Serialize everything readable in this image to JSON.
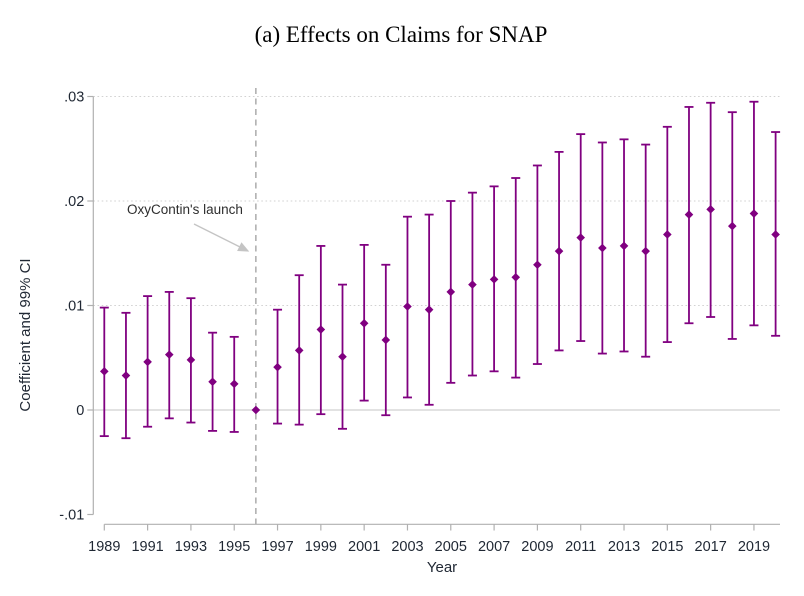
{
  "title": "(a) Effects on Claims for SNAP",
  "chart_data": {
    "type": "scatter",
    "subtype": "coefficient_plot_with_error_bars",
    "title": "(a) Effects on Claims for SNAP",
    "xlabel": "Year",
    "ylabel": "Coefficient and 99% CI",
    "x_tick_labels": [
      "1989",
      "1991",
      "1993",
      "1995",
      "1997",
      "1999",
      "2001",
      "2003",
      "2005",
      "2007",
      "2009",
      "2011",
      "2013",
      "2015",
      "2017",
      "2019"
    ],
    "x_tick_values": [
      1989,
      1991,
      1993,
      1995,
      1997,
      1999,
      2001,
      2003,
      2005,
      2007,
      2009,
      2011,
      2013,
      2015,
      2017,
      2019
    ],
    "y_tick_labels": [
      ".03",
      ".02",
      ".01",
      "0",
      "-.01"
    ],
    "y_tick_values": [
      0.03,
      0.02,
      0.01,
      0,
      -0.01
    ],
    "xlim": [
      1988.4,
      2020.6
    ],
    "ylim": [
      -0.012,
      0.031
    ],
    "grid": "horizontal-dotted",
    "zero_line": true,
    "reference_year": 1996,
    "vline": {
      "x": 1996,
      "style": "dashed"
    },
    "annotation": {
      "text": "OxyContin's launch",
      "points_to_x": 1996
    },
    "series": [
      {
        "name": "Coefficient and 99% CI",
        "marker": "diamond",
        "x": [
          1989,
          1990,
          1991,
          1992,
          1993,
          1994,
          1995,
          1996,
          1997,
          1998,
          1999,
          2000,
          2001,
          2002,
          2003,
          2004,
          2005,
          2006,
          2007,
          2008,
          2009,
          2010,
          2011,
          2012,
          2013,
          2014,
          2015,
          2016,
          2017,
          2018,
          2019,
          2020
        ],
        "y": [
          0.0037,
          0.0033,
          0.0046,
          0.0053,
          0.0048,
          0.0027,
          0.0025,
          0,
          0.0041,
          0.0057,
          0.0077,
          0.0051,
          0.0083,
          0.0067,
          0.0099,
          0.0096,
          0.0113,
          0.012,
          0.0125,
          0.0127,
          0.0139,
          0.0152,
          0.0165,
          0.0155,
          0.0157,
          0.0152,
          0.0168,
          0.0187,
          0.0192,
          0.0176,
          0.0188,
          0.0168
        ],
        "ci_low": [
          -0.0025,
          -0.0027,
          -0.0016,
          -0.0008,
          -0.0012,
          -0.002,
          -0.0021,
          null,
          -0.0013,
          -0.0014,
          -0.0004,
          -0.0018,
          0.0009,
          -0.0005,
          0.0012,
          0.0005,
          0.0026,
          0.0033,
          0.0037,
          0.0031,
          0.0044,
          0.0057,
          0.0066,
          0.0054,
          0.0056,
          0.0051,
          0.0065,
          0.0083,
          0.0089,
          0.0068,
          0.0081,
          0.0071
        ],
        "ci_high": [
          0.0098,
          0.0093,
          0.0109,
          0.0113,
          0.0107,
          0.0074,
          0.007,
          null,
          0.0096,
          0.0129,
          0.0157,
          0.012,
          0.0158,
          0.0139,
          0.0185,
          0.0187,
          0.02,
          0.0208,
          0.0214,
          0.0222,
          0.0234,
          0.0247,
          0.0264,
          0.0256,
          0.0259,
          0.0254,
          0.0271,
          0.029,
          0.0294,
          0.0285,
          0.0295,
          0.0266
        ]
      }
    ]
  },
  "colors": {
    "marker": "#800080",
    "error_bar": "#800080",
    "vline": "#9e9e9e",
    "grid": "#d2d2d2",
    "zero_line": "#d8d8d8",
    "axis": "#b0b0b0",
    "text": "#1f2733",
    "title_text": "#000000",
    "annotation_text": "#2e2e2e",
    "annotation_arrow": "#c4c4c4",
    "background": "#ffffff"
  }
}
